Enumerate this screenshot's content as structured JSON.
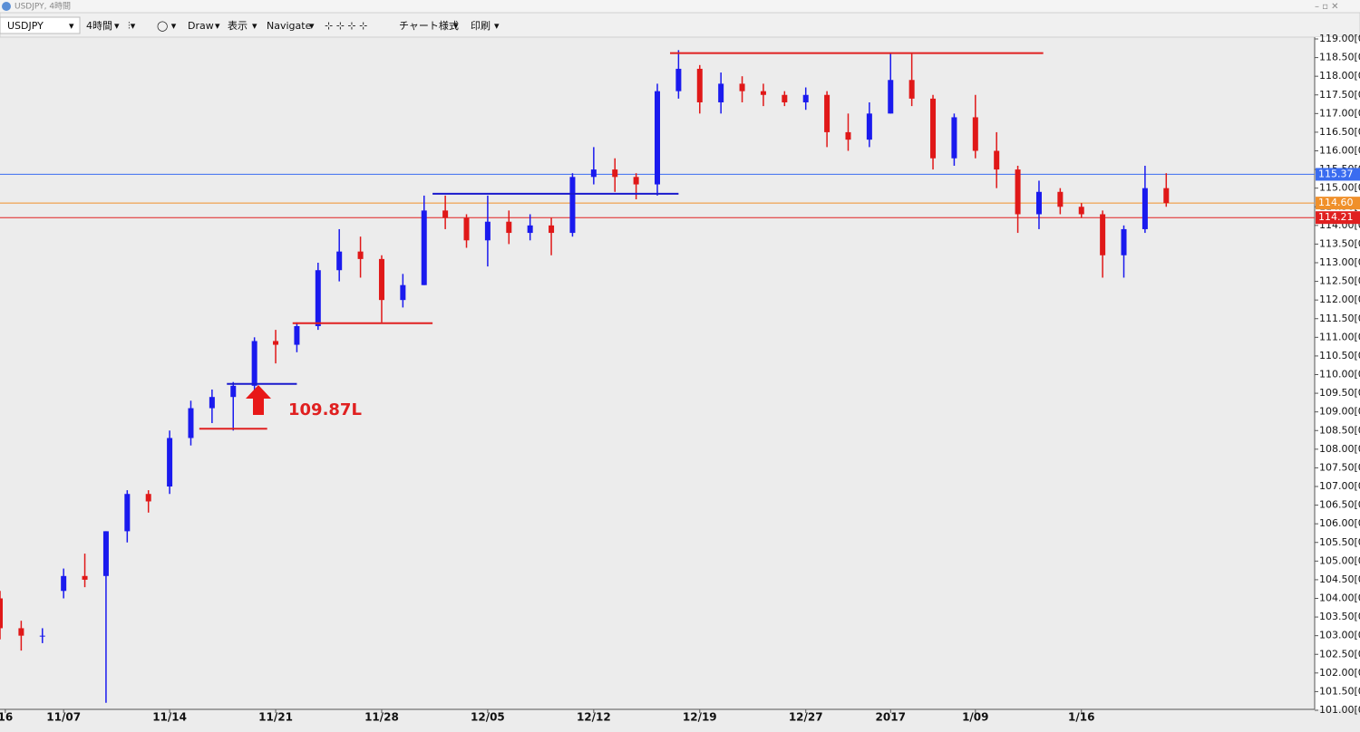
{
  "window": {
    "toolbar": {
      "timeframe": "4時間",
      "draw": "Draw",
      "view": "表示",
      "navigate": "Navigate",
      "style": "チャート様式",
      "print": "印刷"
    }
  },
  "chart_data": {
    "type": "candlestick",
    "title": "USDJPY, 4時間",
    "xlim": [
      -3,
      59
    ],
    "ylim": [
      101,
      119
    ],
    "xticks": [
      {
        "value": -2.75,
        "label": "16"
      },
      {
        "value": 0,
        "label": "11/07"
      },
      {
        "value": 5,
        "label": "11/14"
      },
      {
        "value": 10,
        "label": "11/21"
      },
      {
        "value": 15,
        "label": "11/28"
      },
      {
        "value": 20,
        "label": "12/05"
      },
      {
        "value": 25,
        "label": "12/12"
      },
      {
        "value": 30,
        "label": "12/19"
      },
      {
        "value": 35,
        "label": "12/27"
      },
      {
        "value": 39,
        "label": "2017"
      },
      {
        "value": 43,
        "label": "1/09"
      },
      {
        "value": 48,
        "label": "1/16"
      }
    ],
    "yticks": [
      {
        "value": 119,
        "label": "119.00[0"
      },
      {
        "value": 118.5,
        "label": "118.50[0"
      },
      {
        "value": 118,
        "label": "118.00[0"
      },
      {
        "value": 117.5,
        "label": "117.50[0"
      },
      {
        "value": 117,
        "label": "117.00[0"
      },
      {
        "value": 116.5,
        "label": "116.50[0"
      },
      {
        "value": 116,
        "label": "116.00[0"
      },
      {
        "value": 115.5,
        "label": "115.50[0"
      },
      {
        "value": 115,
        "label": "115.00[0"
      },
      {
        "value": 114.5,
        "label": "114.50[0"
      },
      {
        "value": 114,
        "label": "114.00[0"
      },
      {
        "value": 113.5,
        "label": "113.50[0"
      },
      {
        "value": 113,
        "label": "113.00[0"
      },
      {
        "value": 112.5,
        "label": "112.50[0"
      },
      {
        "value": 112,
        "label": "112.00[0"
      },
      {
        "value": 111.5,
        "label": "111.50[0"
      },
      {
        "value": 111,
        "label": "111.00[0"
      },
      {
        "value": 110.5,
        "label": "110.50[0"
      },
      {
        "value": 110,
        "label": "110.00[0"
      },
      {
        "value": 109.5,
        "label": "109.50[0"
      },
      {
        "value": 109,
        "label": "109.00[0"
      },
      {
        "value": 108.5,
        "label": "108.50[0"
      },
      {
        "value": 108,
        "label": "108.00[0"
      },
      {
        "value": 107.5,
        "label": "107.50[0"
      },
      {
        "value": 107,
        "label": "107.00[0"
      },
      {
        "value": 106.5,
        "label": "106.50[0"
      },
      {
        "value": 106,
        "label": "106.00[0"
      },
      {
        "value": 105.5,
        "label": "105.50[0"
      },
      {
        "value": 105,
        "label": "105.00[0"
      },
      {
        "value": 104.5,
        "label": "104.50[0"
      },
      {
        "value": 104,
        "label": "104.00[0"
      },
      {
        "value": 103.5,
        "label": "103.50[0"
      },
      {
        "value": 103,
        "label": "103.00[0"
      },
      {
        "value": 102.5,
        "label": "102.50[0"
      },
      {
        "value": 102,
        "label": "102.00[0"
      },
      {
        "value": 101.5,
        "label": "101.50[0"
      },
      {
        "value": 101,
        "label": "101.00[0"
      }
    ],
    "up_color": "#1a1aee",
    "down_color": "#e01818",
    "series": [
      {
        "name": "USDJPY",
        "x": [
          -3,
          -2,
          -1,
          0,
          1,
          2,
          3,
          4,
          5,
          6,
          7,
          8,
          9,
          10,
          11,
          12,
          13,
          14,
          15,
          16,
          17,
          18,
          19,
          20,
          21,
          22,
          23,
          24,
          25,
          26,
          27,
          28,
          29,
          30,
          31,
          32,
          33,
          34,
          35,
          36,
          37,
          38,
          39,
          40,
          41,
          42,
          43,
          44,
          45,
          46,
          47,
          48,
          49,
          50,
          51,
          52
        ],
        "open": [
          104.0,
          103.2,
          103.0,
          104.2,
          104.6,
          104.6,
          105.8,
          106.8,
          107.0,
          108.3,
          109.1,
          109.4,
          109.7,
          110.9,
          110.8,
          111.3,
          112.8,
          113.3,
          113.1,
          112.0,
          112.4,
          114.4,
          114.2,
          113.6,
          114.1,
          113.8,
          114.0,
          113.8,
          115.3,
          115.5,
          115.3,
          115.1,
          117.6,
          118.2,
          117.3,
          117.8,
          117.6,
          117.5,
          117.3,
          117.5,
          116.5,
          116.3,
          117.0,
          117.9,
          117.4,
          115.8,
          116.9,
          116.0,
          115.5,
          114.3,
          114.9,
          114.5,
          114.3,
          113.2,
          113.9,
          115.0
        ],
        "high": [
          104.2,
          103.4,
          103.2,
          104.8,
          105.2,
          105.8,
          106.9,
          106.9,
          108.5,
          109.3,
          109.6,
          109.8,
          111.0,
          111.2,
          111.4,
          113.0,
          113.9,
          113.7,
          113.2,
          112.7,
          114.8,
          114.8,
          114.3,
          114.8,
          114.4,
          114.3,
          114.2,
          115.4,
          116.1,
          115.8,
          115.4,
          117.8,
          118.7,
          118.3,
          118.1,
          118.0,
          117.8,
          117.6,
          117.7,
          117.6,
          117.0,
          117.3,
          118.6,
          118.6,
          117.5,
          117.0,
          117.5,
          116.5,
          115.6,
          115.2,
          115.0,
          114.6,
          114.4,
          114.0,
          115.6,
          115.4
        ],
        "low": [
          102.9,
          102.6,
          102.8,
          104.0,
          104.3,
          101.2,
          105.5,
          106.3,
          106.8,
          108.1,
          108.7,
          108.5,
          109.4,
          110.3,
          110.6,
          111.2,
          112.5,
          112.6,
          111.4,
          111.8,
          112.4,
          113.9,
          113.4,
          112.9,
          113.5,
          113.6,
          113.2,
          113.7,
          115.1,
          114.9,
          114.7,
          114.8,
          117.4,
          117.0,
          117.0,
          117.3,
          117.2,
          117.2,
          117.1,
          116.1,
          116.0,
          116.1,
          117.0,
          117.2,
          115.5,
          115.6,
          115.8,
          115.0,
          113.8,
          113.9,
          114.3,
          114.2,
          112.6,
          112.6,
          113.8,
          114.5
        ],
        "close": [
          103.2,
          103.0,
          103.0,
          104.6,
          104.5,
          105.8,
          106.8,
          106.6,
          108.3,
          109.1,
          109.4,
          109.7,
          110.9,
          110.8,
          111.3,
          112.8,
          113.3,
          113.1,
          112.0,
          112.4,
          114.4,
          114.2,
          113.6,
          114.1,
          113.8,
          114.0,
          113.8,
          115.3,
          115.5,
          115.3,
          115.1,
          117.6,
          118.2,
          117.3,
          117.8,
          117.6,
          117.5,
          117.3,
          117.5,
          116.5,
          116.3,
          117.0,
          117.9,
          117.4,
          115.8,
          116.9,
          116.0,
          115.5,
          114.3,
          114.9,
          114.5,
          114.3,
          113.2,
          113.9,
          115.0,
          114.6
        ]
      }
    ],
    "levels": [
      {
        "value": 118.62,
        "x": [
          28.6,
          46.2
        ],
        "color": "#e02020"
      },
      {
        "value": 114.85,
        "x": [
          17.4,
          29
        ]
      },
      {
        "value": 111.38,
        "x": [
          10.8,
          17.4
        ],
        "color": "#e02020"
      },
      {
        "value": 109.75,
        "x": [
          7.7,
          11
        ],
        "color": "#1a1acc"
      },
      {
        "value": 108.55,
        "x": [
          6.4,
          9.6
        ],
        "color": "#e02020"
      }
    ],
    "price_labels": [
      {
        "value": 115.37,
        "label": "115.37",
        "color": "#3a6cf0"
      },
      {
        "value": 114.6,
        "label": "114.60",
        "color": "#f0902a"
      },
      {
        "value": 114.21,
        "label": "114.21",
        "color": "#e02020"
      }
    ],
    "annotation": "109.87L"
  }
}
